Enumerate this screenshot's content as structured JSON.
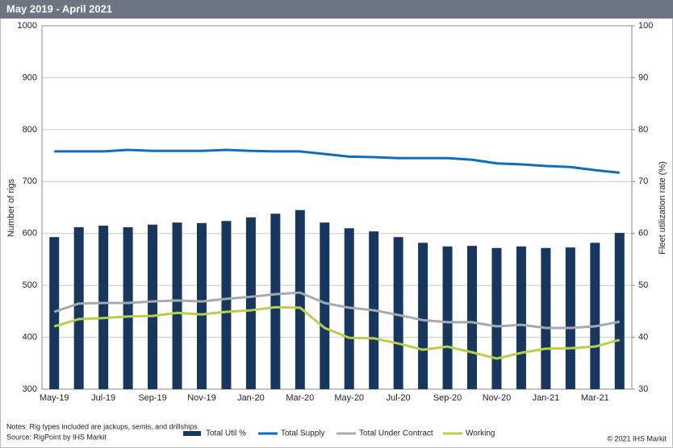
{
  "chart_data": {
    "type": "combo",
    "title": "May 2019 - April 2021",
    "y_label": "Number of rigs",
    "y2_label": "Fleet utilization rate (%)",
    "categories": [
      "May-19",
      null,
      "Jul-19",
      null,
      "Sep-19",
      null,
      "Nov-19",
      null,
      "Jan-20",
      null,
      "Mar-20",
      null,
      "May-20",
      null,
      "Jul-20",
      null,
      "Sep-20",
      null,
      "Nov-20",
      null,
      "Jan-21",
      null,
      "Mar-21",
      null
    ],
    "ylim": [
      300,
      1000
    ],
    "yticks": [
      300,
      400,
      500,
      600,
      700,
      800,
      900,
      1000
    ],
    "y2lim": [
      30,
      100
    ],
    "y2ticks": [
      30,
      40,
      50,
      60,
      70,
      80,
      90,
      100
    ],
    "grid": true,
    "series": [
      {
        "name": "Total Util %",
        "type": "bar",
        "axis": "y2",
        "color": "#17375e",
        "values": [
          59.3,
          61.2,
          61.5,
          61.2,
          61.7,
          62.1,
          62.0,
          62.4,
          63.1,
          63.8,
          64.5,
          62.1,
          61.0,
          60.4,
          59.3,
          58.2,
          57.5,
          57.6,
          57.2,
          57.5,
          57.2,
          57.3,
          58.2,
          60.1
        ]
      },
      {
        "name": "Total Supply",
        "type": "line",
        "color": "#0e6eb8",
        "values": [
          758,
          758,
          758,
          761,
          759,
          759,
          759,
          761,
          759,
          758,
          758,
          753,
          748,
          747,
          745,
          745,
          745,
          742,
          735,
          733,
          730,
          728,
          722,
          717
        ]
      },
      {
        "name": "Total Under Contract",
        "type": "line",
        "color": "#a6a9ad",
        "values": [
          449,
          465,
          466,
          466,
          469,
          471,
          469,
          474,
          478,
          483,
          486,
          466,
          457,
          452,
          443,
          433,
          429,
          429,
          421,
          424,
          418,
          418,
          421,
          430
        ]
      },
      {
        "name": "Working",
        "type": "line",
        "color": "#b9cf4b",
        "values": [
          421,
          435,
          437,
          440,
          441,
          447,
          444,
          449,
          452,
          458,
          457,
          418,
          399,
          398,
          388,
          376,
          382,
          371,
          359,
          370,
          378,
          379,
          382,
          395
        ]
      }
    ],
    "notes": "Notes: Rig types included are jackups, semis, and drillships",
    "source": "Source: RigPoint by IHS Markit",
    "copyright": "© 2021 IHS Markit"
  }
}
